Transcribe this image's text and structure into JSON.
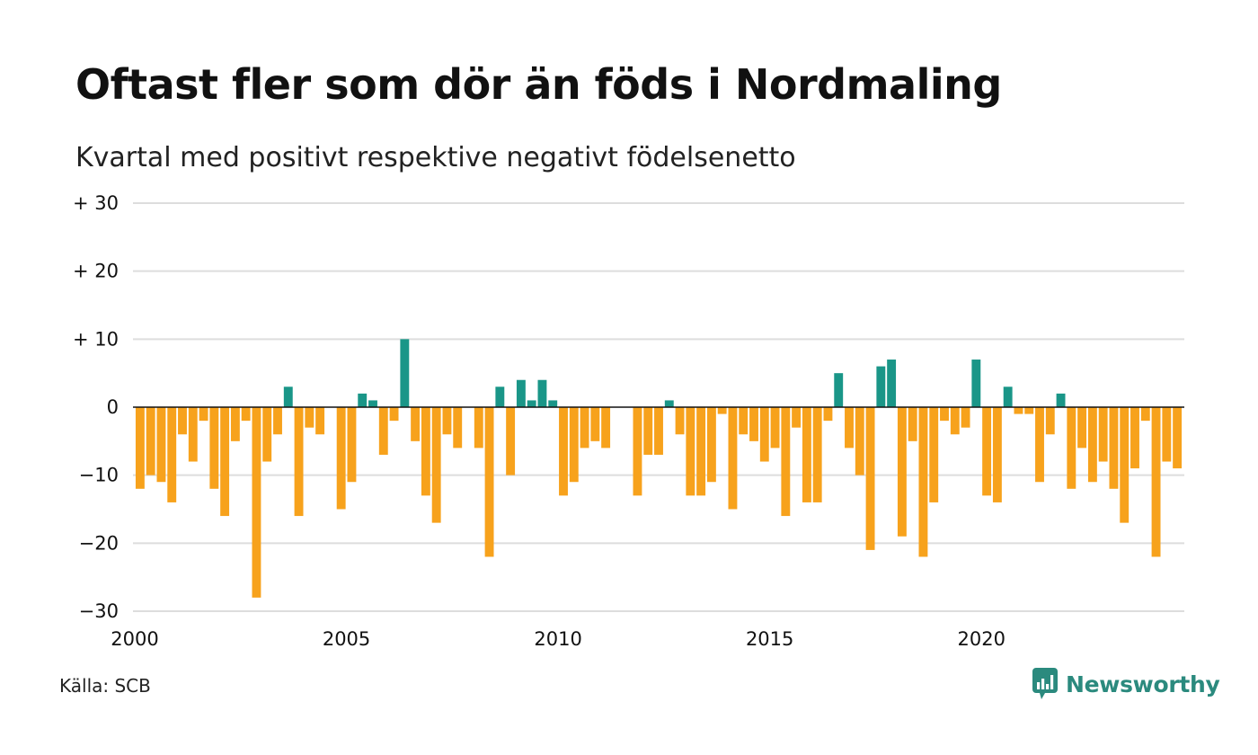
{
  "header": {
    "title": "Oftast fler som dör än föds i Nordmaling",
    "subtitle": "Kvartal med positivt respektive negativt födelsenetto"
  },
  "footer": {
    "source": "Källa: SCB",
    "brand_name": "Newsworthy",
    "brand_icon": "newsworthy-logo-icon"
  },
  "colors": {
    "positive": "#1a9688",
    "negative": "#f7a21c",
    "grid": "#dddddd",
    "zero_line": "#111111",
    "brand": "#2b8a7e"
  },
  "chart_data": {
    "type": "bar",
    "title": "Oftast fler som dör än föds i Nordmaling",
    "subtitle": "Kvartal med positivt respektive negativt födelsenetto",
    "xlabel": "",
    "ylabel": "",
    "x_start": 2000,
    "periods_per_year": 4,
    "x_ticks": [
      "2000",
      "2005",
      "2010",
      "2015",
      "2020"
    ],
    "y_ticks": [
      {
        "value": 30,
        "label": "+ 30"
      },
      {
        "value": 20,
        "label": "+ 20"
      },
      {
        "value": 10,
        "label": "+ 10"
      },
      {
        "value": 0,
        "label": "0"
      },
      {
        "value": -10,
        "label": "−10"
      },
      {
        "value": -20,
        "label": "−20"
      },
      {
        "value": -30,
        "label": "−30"
      }
    ],
    "ylim": [
      -30,
      30
    ],
    "grid": true,
    "legend": "none",
    "values": [
      -12,
      -10,
      -11,
      -14,
      -4,
      -8,
      -2,
      -12,
      -16,
      -5,
      -2,
      -28,
      -8,
      -4,
      3,
      -16,
      -3,
      -4,
      0,
      -15,
      -11,
      2,
      1,
      -7,
      -2,
      10,
      -5,
      -13,
      -17,
      -4,
      -6,
      0,
      -6,
      -22,
      3,
      -10,
      4,
      1,
      4,
      1,
      -13,
      -11,
      -6,
      -5,
      -6,
      0,
      0,
      -13,
      -7,
      -7,
      1,
      -4,
      -13,
      -13,
      -11,
      -1,
      -15,
      -4,
      -5,
      -8,
      -6,
      -16,
      -3,
      -14,
      -14,
      -2,
      5,
      -6,
      -10,
      -21,
      6,
      7,
      -19,
      -5,
      -22,
      -14,
      -2,
      -4,
      -3,
      7,
      -13,
      -14,
      3,
      -1,
      -1,
      -11,
      -4,
      2,
      -12,
      -6,
      -11,
      -8,
      -12,
      -17,
      -9,
      -2,
      -22,
      -8,
      -9
    ]
  }
}
